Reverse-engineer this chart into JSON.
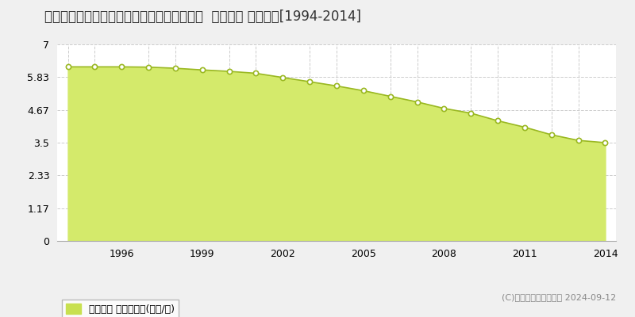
{
  "title": "青森県北津軽郡板柳町大字辻字福岡５２番７  地価公示 地価推移[1994-2014]",
  "years": [
    1994,
    1995,
    1996,
    1997,
    1998,
    1999,
    2000,
    2001,
    2002,
    2003,
    2004,
    2005,
    2006,
    2007,
    2008,
    2009,
    2010,
    2011,
    2012,
    2013,
    2014
  ],
  "values": [
    6.2,
    6.2,
    6.2,
    6.19,
    6.15,
    6.09,
    6.04,
    5.97,
    5.82,
    5.67,
    5.52,
    5.35,
    5.15,
    4.95,
    4.72,
    4.55,
    4.28,
    4.05,
    3.78,
    3.58,
    3.5
  ],
  "yticks": [
    0,
    1.17,
    2.33,
    3.5,
    4.67,
    5.83,
    7
  ],
  "ytick_labels": [
    "0",
    "1.17",
    "2.33",
    "3.5",
    "4.67",
    "5.83",
    "7"
  ],
  "xtick_positions": [
    1996,
    1999,
    2002,
    2005,
    2008,
    2011,
    2014
  ],
  "xtick_labels": [
    "1996",
    "1999",
    "2002",
    "2005",
    "2008",
    "2011",
    "2014"
  ],
  "grid_xticks": [
    1994,
    1995,
    1996,
    1997,
    1998,
    1999,
    2000,
    2001,
    2002,
    2003,
    2004,
    2005,
    2006,
    2007,
    2008,
    2009,
    2010,
    2011,
    2012,
    2013,
    2014
  ],
  "ylim": [
    0,
    7
  ],
  "xlim_left": 1993.6,
  "xlim_right": 2014.4,
  "fill_color": "#d4ea6b",
  "line_color": "#9ab822",
  "marker_facecolor": "#ffffff",
  "marker_edgecolor": "#9ab822",
  "grid_color": "#cccccc",
  "figure_bg": "#f0f0f0",
  "plot_bg": "#ffffff",
  "legend_label": "地価公示 平均坪単価(万円/坪)",
  "legend_square_color": "#c8e050",
  "copyright_text": "(C)土地価格ドットコム 2024-09-12",
  "title_fontsize": 12,
  "axis_fontsize": 9,
  "legend_fontsize": 9
}
